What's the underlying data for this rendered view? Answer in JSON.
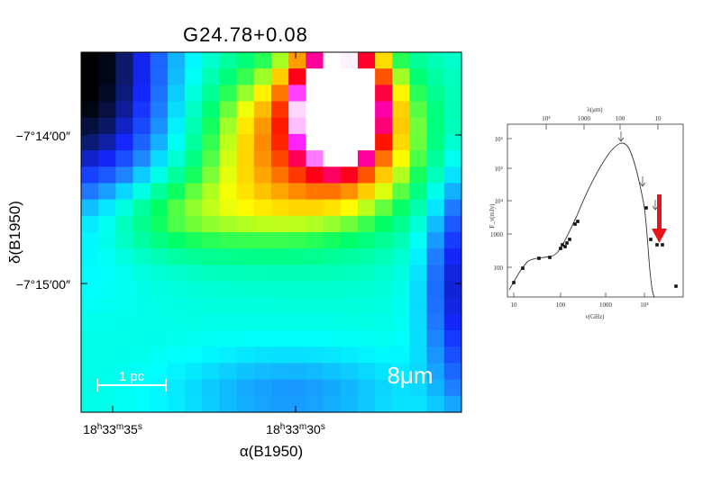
{
  "figure": {
    "title": "G24.78+0.08"
  },
  "map": {
    "wavelength_label": "8μm",
    "scalebar_label": "1 pc",
    "x_axis_label": "α(B1950)",
    "y_axis_label": "δ(B1950)",
    "x_ticks": [
      {
        "h": "18",
        "m": "33",
        "s": "35"
      },
      {
        "h": "18",
        "m": "33",
        "s": "30"
      }
    ],
    "y_ticks": [
      "−7°14′00″",
      "−7°15′00″"
    ],
    "colormap": [
      "#000000",
      "#0b1a6b",
      "#1428ff",
      "#1f7bff",
      "#00ffff",
      "#00ff66",
      "#ffff00",
      "#ff7f00",
      "#ff0000",
      "#ff00ff",
      "#ffffff"
    ]
  },
  "sed_plot": {
    "x_label": "ν(GHz)",
    "y_label": "F_ν(mJy)",
    "top_label": "λ(μm)",
    "x_ticks": [
      "10",
      "100",
      "1000",
      "10⁴"
    ],
    "y_ticks": [
      "10⁶",
      "10⁵",
      "10⁴",
      "1000",
      "100"
    ],
    "top_ticks": [
      "10⁴",
      "1000",
      "100",
      "10"
    ],
    "arrow_color": "#e8141a"
  }
}
